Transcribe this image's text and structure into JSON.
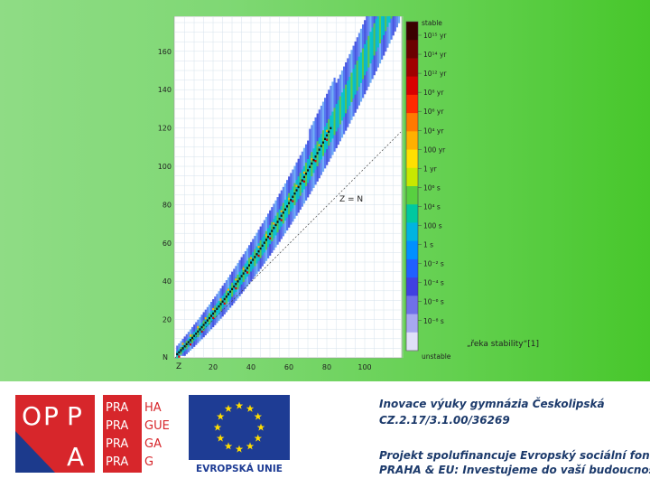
{
  "chart_data": {
    "type": "heatmap",
    "x_axis": {
      "label": "Z",
      "ticks": [
        "20",
        "40",
        "60",
        "80",
        "100"
      ]
    },
    "y_axis": {
      "label": "N",
      "ticks": [
        "20",
        "40",
        "60",
        "80",
        "100",
        "120",
        "140",
        "160"
      ]
    },
    "diagonal_label": "Z = N",
    "colorbar": {
      "top_label": "stable",
      "bottom_label": "unstable",
      "entries": [
        "10¹⁵ yr",
        "10¹⁴ yr",
        "10¹² yr",
        "10⁸ yr",
        "10⁶ yr",
        "10⁴ yr",
        "100 yr",
        "1 yr",
        "10⁶ s",
        "10⁴ s",
        "100 s",
        "1 s",
        "10⁻² s",
        "10⁻⁴ s",
        "10⁻⁶ s",
        "10⁻⁸ s"
      ],
      "colors": [
        "#3a0000",
        "#6b0000",
        "#a00000",
        "#d80000",
        "#ff2a00",
        "#ff7a00",
        "#ffb000",
        "#ffe000",
        "#c8e800",
        "#58d040",
        "#00c8a0",
        "#00b4e0",
        "#0090ff",
        "#2060ff",
        "#4040e0",
        "#7070e8",
        "#a8a8f0",
        "#e0e0f8"
      ],
      "annotation": "„řeka stability“[1]"
    }
  },
  "footer": {
    "oppa": {
      "letters": [
        "O",
        "P",
        "P",
        "A"
      ]
    },
    "praha": {
      "rows": [
        [
          "PRA",
          "HA"
        ],
        [
          "PRA",
          "GUE"
        ],
        [
          "PRA",
          "GA"
        ],
        [
          "PRA",
          "G"
        ]
      ]
    },
    "eu": {
      "caption": "EVROPSKÁ UNIE",
      "flag_color": "#1e3c94",
      "star_color": "#ffdd00"
    },
    "project_line1": "Inovace výuky gymnázia Českolipská",
    "project_line2": "CZ.2.17/3.1.00/36269",
    "project_line3": "Projekt spolufinancuje Evropský sociální fond.",
    "project_line4": "PRAHA & EU: Investujeme do vaší budoucnosti."
  },
  "colors": {
    "brand_red": "#d7262b",
    "text_blue": "#1c3a6b"
  }
}
